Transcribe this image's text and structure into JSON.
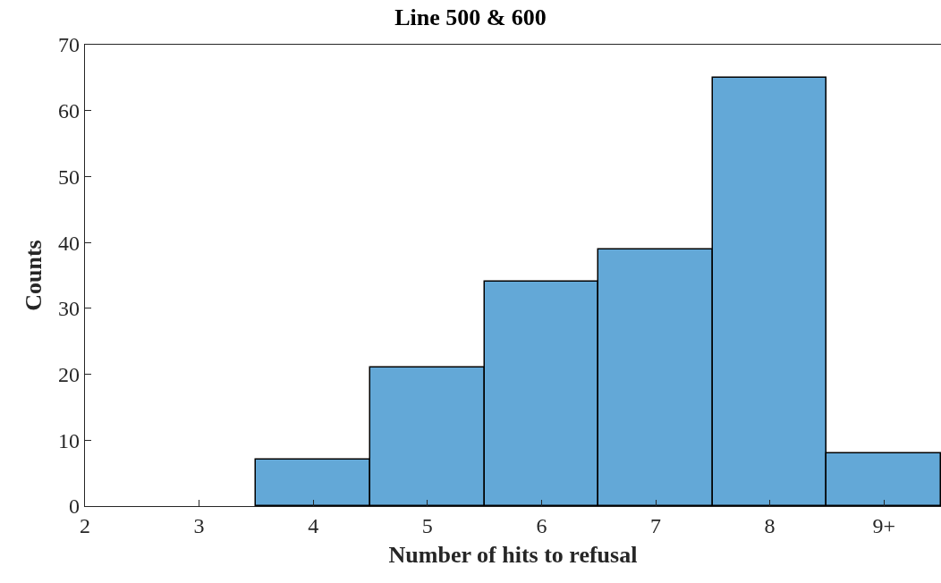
{
  "chart_data": {
    "type": "histogram",
    "title": "Line 500 & 600",
    "xlabel": "Number of hits to refusal",
    "ylabel": "Counts",
    "bins": [
      3.5,
      4.5,
      5.5,
      6.5,
      7.5,
      8.5,
      9.5
    ],
    "values": [
      7,
      21,
      34,
      39,
      65,
      8
    ],
    "color": "#63a8d7",
    "xlim": [
      2,
      9.5
    ],
    "xticks": [
      2,
      3,
      4,
      5,
      6,
      7,
      8,
      {
        "value": 9,
        "label": "9+"
      }
    ],
    "ylim": [
      0,
      70
    ],
    "yticks": [
      0,
      10,
      20,
      30,
      40,
      50,
      60,
      70
    ]
  }
}
